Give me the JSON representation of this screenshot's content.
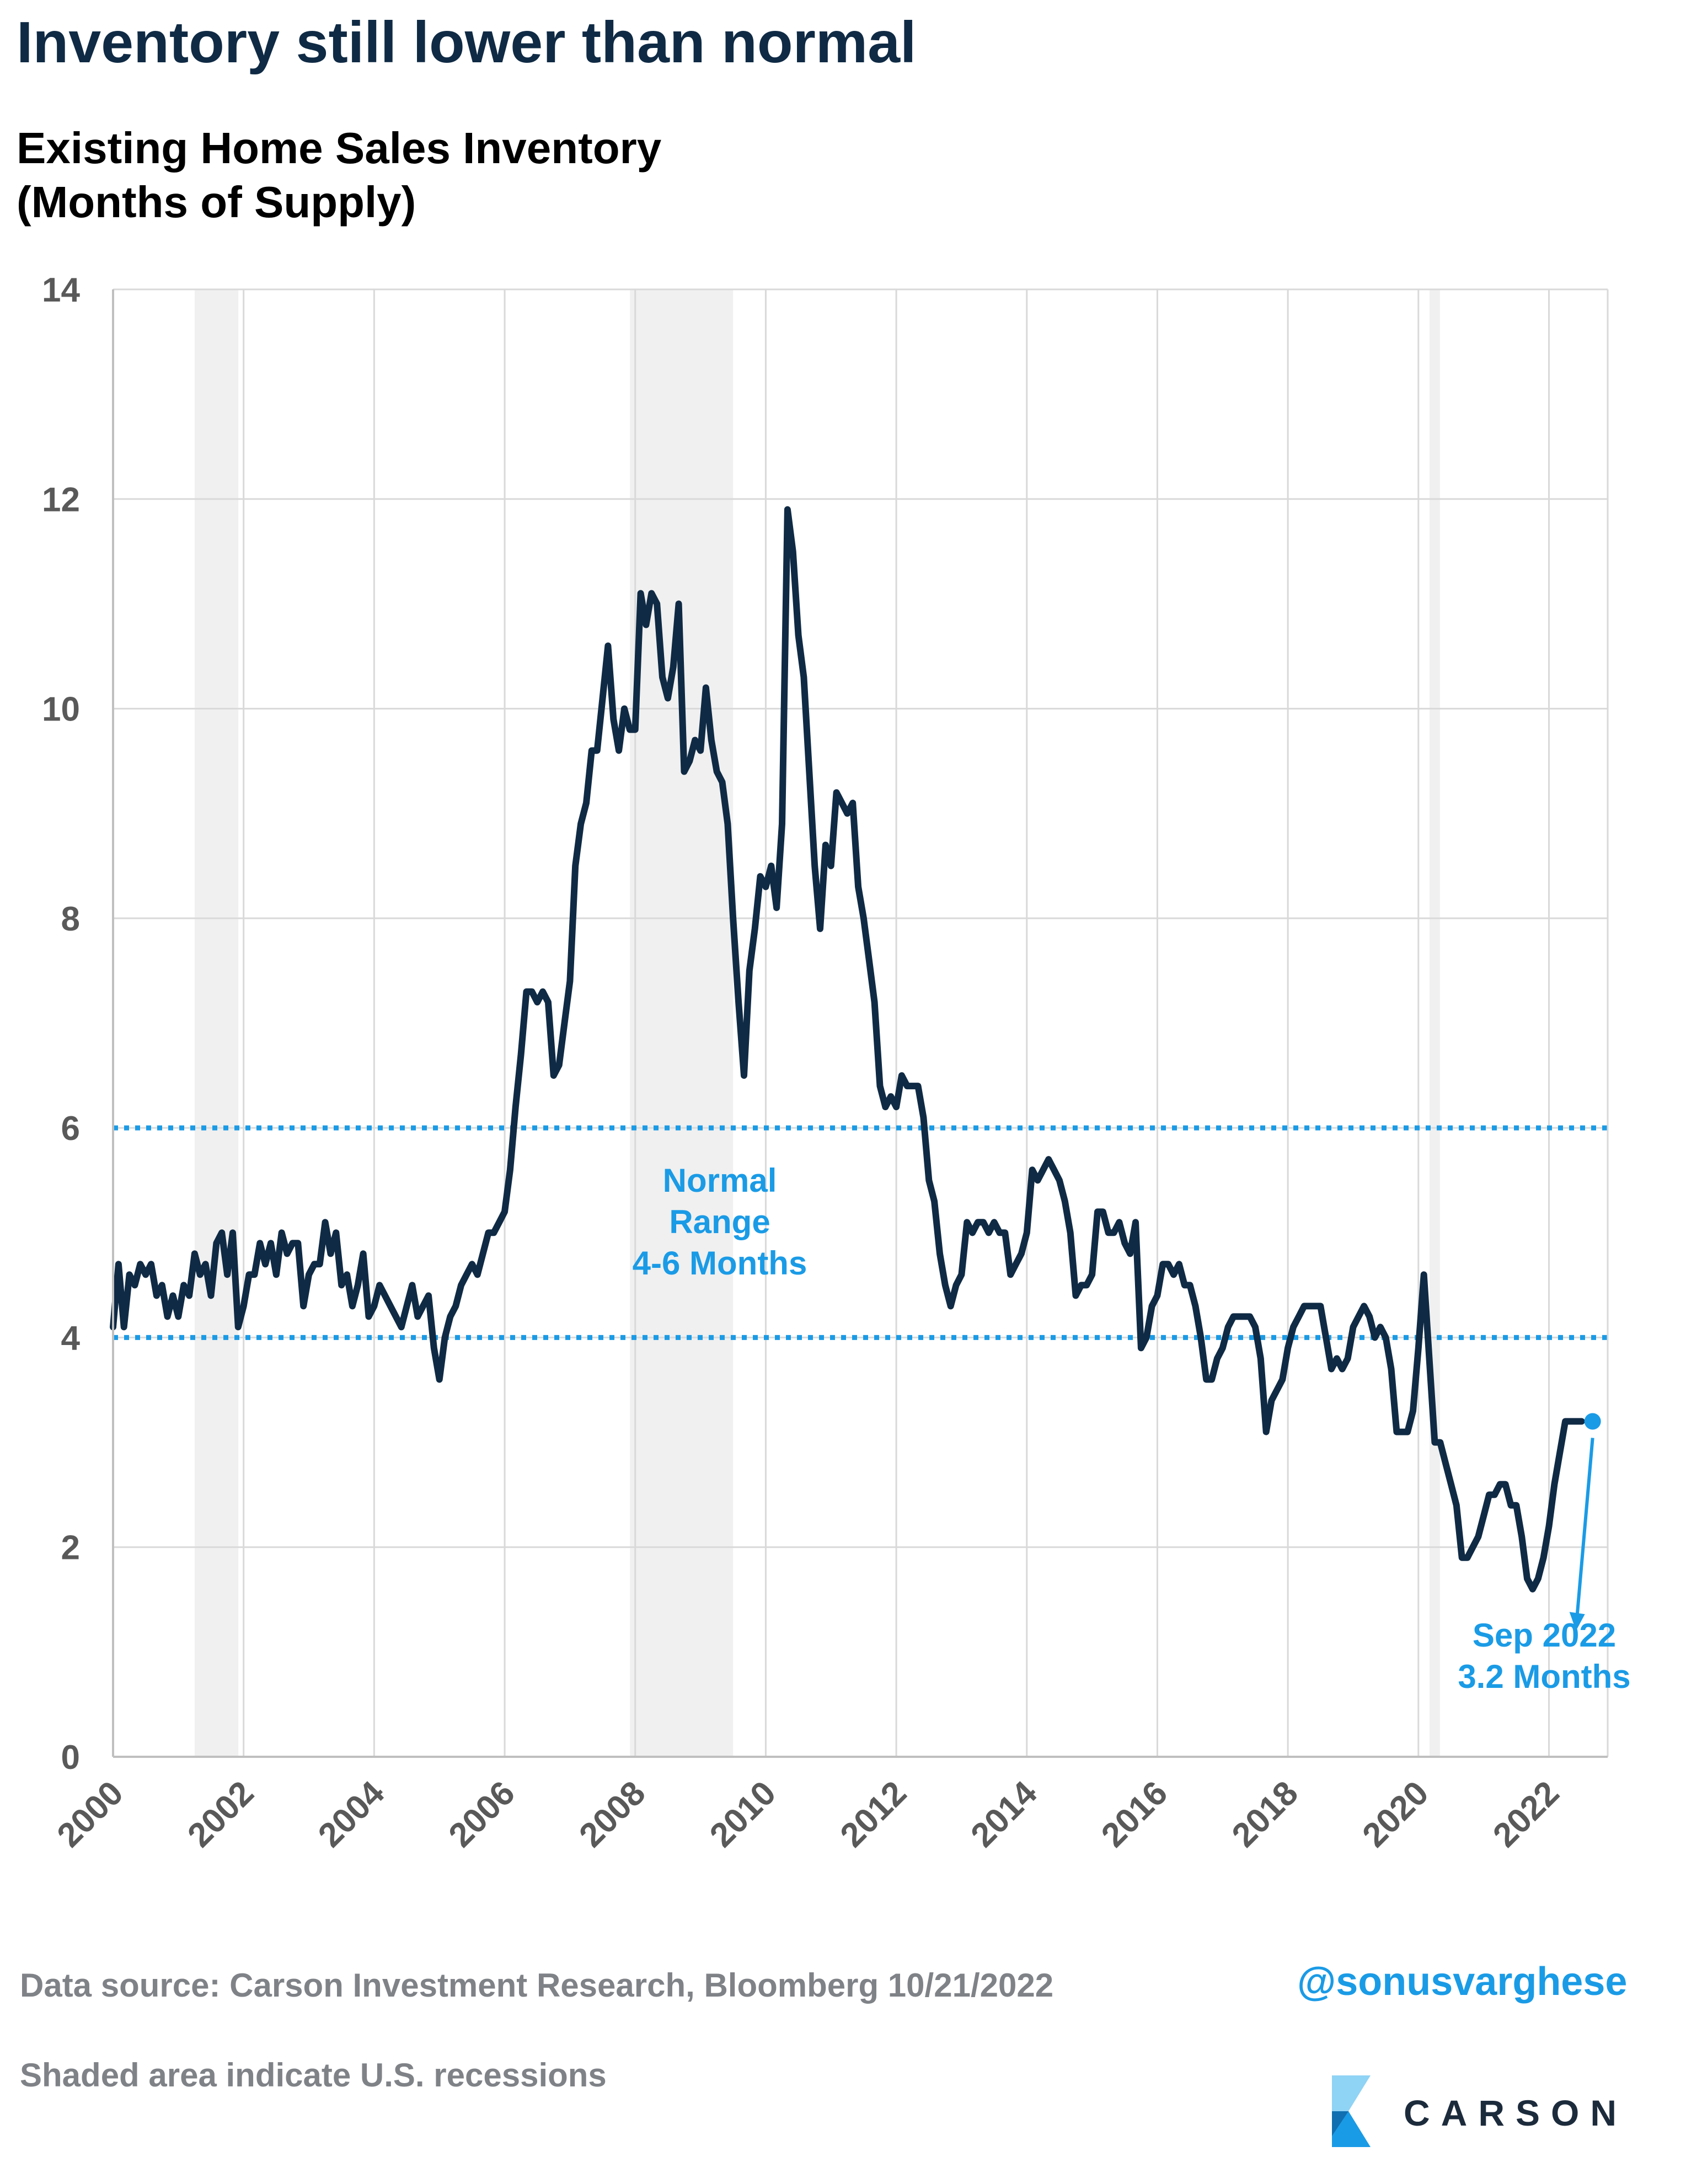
{
  "title": "Inventory still lower than normal",
  "subtitle_line1": "Existing Home Sales Inventory",
  "subtitle_line2": "(Months of Supply)",
  "footer": {
    "source": "Data source: Carson Investment Research, Bloomberg   10/21/2022",
    "note": "Shaded area indicate U.S. recessions",
    "handle": "@sonusvarghese",
    "brand": "CARSON"
  },
  "colors": {
    "line": "#0f2a44",
    "accent": "#1a9be6",
    "recession": "#f0f0f0",
    "grid": "#d9d9d9",
    "tick": "#595959"
  },
  "chart_data": {
    "type": "line",
    "title": "Existing Home Sales Inventory (Months of Supply)",
    "xlabel": "",
    "ylabel": "",
    "xlim": [
      2000,
      2022.9
    ],
    "ylim": [
      0,
      14
    ],
    "x_ticks": [
      "2000",
      "2002",
      "2004",
      "2006",
      "2008",
      "2010",
      "2012",
      "2014",
      "2016",
      "2018",
      "2020",
      "2022"
    ],
    "y_ticks": [
      0,
      2,
      4,
      6,
      8,
      10,
      12,
      14
    ],
    "grid": true,
    "legend": "none",
    "recessions": [
      [
        2001.25,
        2001.92
      ],
      [
        2007.92,
        2009.5
      ],
      [
        2020.17,
        2020.33
      ]
    ],
    "reference_lines": [
      4,
      6
    ],
    "annotations": {
      "normal_range": [
        "Normal",
        "Range",
        "4-6 Months"
      ],
      "last_point": [
        "Sep 2022",
        "3.2 Months"
      ]
    },
    "series": [
      {
        "start_year": 2000,
        "step_months": 1,
        "values": [
          4.1,
          4.7,
          4.1,
          4.6,
          4.5,
          4.7,
          4.6,
          4.7,
          4.4,
          4.5,
          4.2,
          4.4,
          4.2,
          4.5,
          4.4,
          4.8,
          4.6,
          4.7,
          4.4,
          4.9,
          5.0,
          4.6,
          5.0,
          4.1,
          4.3,
          4.6,
          4.6,
          4.9,
          4.7,
          4.9,
          4.6,
          5.0,
          4.8,
          4.9,
          4.9,
          4.3,
          4.6,
          4.7,
          4.7,
          5.1,
          4.8,
          5.0,
          4.5,
          4.6,
          4.3,
          4.5,
          4.8,
          4.2,
          4.3,
          4.5,
          4.4,
          4.3,
          4.2,
          4.1,
          4.3,
          4.5,
          4.2,
          4.3,
          4.4,
          3.9,
          3.6,
          4.0,
          4.2,
          4.3,
          4.5,
          4.6,
          4.7,
          4.6,
          4.8,
          5.0,
          5.0,
          5.1,
          5.2,
          5.6,
          6.2,
          6.7,
          7.3,
          7.3,
          7.2,
          7.3,
          7.2,
          6.5,
          6.6,
          7.0,
          7.4,
          8.5,
          8.9,
          9.1,
          9.6,
          9.6,
          10.1,
          10.6,
          9.9,
          9.6,
          10.0,
          9.8,
          9.8,
          11.1,
          10.8,
          11.1,
          11.0,
          10.3,
          10.1,
          10.4,
          11.0,
          9.4,
          9.5,
          9.7,
          9.6,
          10.2,
          9.7,
          9.4,
          9.3,
          8.9,
          8.0,
          7.2,
          6.5,
          7.5,
          7.9,
          8.4,
          8.3,
          8.5,
          8.1,
          8.9,
          11.9,
          11.5,
          10.7,
          10.3,
          9.4,
          8.5,
          7.9,
          8.7,
          8.5,
          9.2,
          9.1,
          9.0,
          9.1,
          8.3,
          8.0,
          7.6,
          7.2,
          6.4,
          6.2,
          6.3,
          6.2,
          6.5,
          6.4,
          6.4,
          6.4,
          6.1,
          5.5,
          5.3,
          4.8,
          4.5,
          4.3,
          4.5,
          4.6,
          5.1,
          5.0,
          5.1,
          5.1,
          5.0,
          5.1,
          5.0,
          5.0,
          4.6,
          4.7,
          4.8,
          5.0,
          5.6,
          5.5,
          5.6,
          5.7,
          5.6,
          5.5,
          5.3,
          5.0,
          4.4,
          4.5,
          4.5,
          4.6,
          5.2,
          5.2,
          5.0,
          5.0,
          5.1,
          4.9,
          4.8,
          5.1,
          3.9,
          4.0,
          4.3,
          4.4,
          4.7,
          4.7,
          4.6,
          4.7,
          4.5,
          4.5,
          4.3,
          4.0,
          3.6,
          3.6,
          3.8,
          3.9,
          4.1,
          4.2,
          4.2,
          4.2,
          4.2,
          4.1,
          3.8,
          3.1,
          3.4,
          3.5,
          3.6,
          3.9,
          4.1,
          4.2,
          4.3,
          4.3,
          4.3,
          4.3,
          4.0,
          3.7,
          3.8,
          3.7,
          3.8,
          4.1,
          4.2,
          4.3,
          4.2,
          4.0,
          4.1,
          4.0,
          3.7,
          3.1,
          3.1,
          3.1,
          3.3,
          3.9,
          4.6,
          3.8,
          3.0,
          3.0,
          2.8,
          2.6,
          2.4,
          1.9,
          1.9,
          2.0,
          2.1,
          2.3,
          2.5,
          2.5,
          2.6,
          2.6,
          2.4,
          2.4,
          2.1,
          1.7,
          1.6,
          1.7,
          1.9,
          2.2,
          2.6,
          2.9,
          3.2,
          3.2,
          3.2,
          3.2
        ]
      }
    ]
  }
}
